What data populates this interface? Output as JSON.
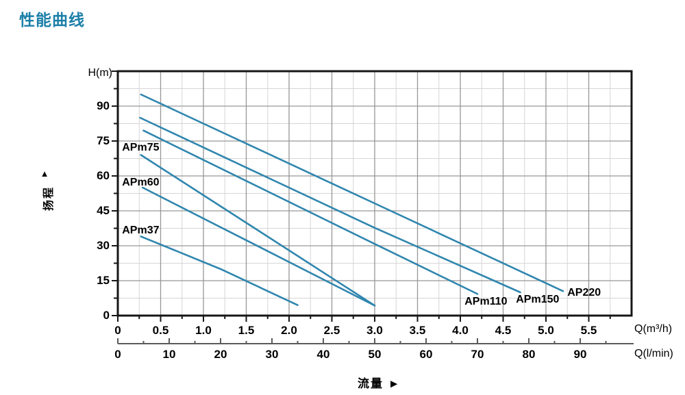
{
  "page_title": "性能曲线",
  "colors": {
    "title": "#1c7fa8",
    "curve": "#2f86ae",
    "grid_minor": "#d6d6d6",
    "grid_major": "#969696",
    "border": "#161616",
    "secondary_axis": "#5a5a5a",
    "text": "#000000"
  },
  "chart_data": {
    "type": "line",
    "title": "性能曲线",
    "grid": "minor+major",
    "legend_position": "inline-labels",
    "y_axis": {
      "unit": "H(m)",
      "title": "扬程",
      "arrow": "▲",
      "range": [
        0,
        105
      ],
      "major_tick": 15,
      "minor_tick": 7.5,
      "tick_labels": [
        "0",
        "15",
        "30",
        "45",
        "60",
        "75",
        "90"
      ]
    },
    "x_axis_primary": {
      "unit": "Q(m³/h)",
      "range": [
        0,
        6
      ],
      "major_tick": 0.5,
      "minor_tick": 0.25,
      "tick_labels": [
        "0",
        "0.5",
        "1.0",
        "1.5",
        "2.0",
        "2.5",
        "3.0",
        "3.5",
        "4.0",
        "4.5",
        "5.0",
        "5.5"
      ]
    },
    "x_axis_secondary": {
      "unit": "Q(l/min)",
      "range": [
        0,
        100
      ],
      "major_tick": 10,
      "minor_tick": 5,
      "tick_labels": [
        "0",
        "10",
        "20",
        "30",
        "40",
        "50",
        "60",
        "70",
        "80",
        "90"
      ]
    },
    "x_axis_title": "流量",
    "x_axis_arrow": "►",
    "series": [
      {
        "name": "AP220",
        "points": [
          [
            0.27,
            95
          ],
          [
            3.0,
            48.2
          ],
          [
            5.2,
            10.5
          ]
        ],
        "label_pos": [
          5.25,
          9.8
        ]
      },
      {
        "name": "APm150",
        "points": [
          [
            0.26,
            85
          ],
          [
            3.0,
            37.7
          ],
          [
            4.7,
            10.0
          ]
        ],
        "label_pos": [
          4.65,
          6.9
        ]
      },
      {
        "name": "APm110",
        "points": [
          [
            0.3,
            79.5
          ],
          [
            3.0,
            30.8
          ],
          [
            4.2,
            9.3
          ]
        ],
        "label_pos": [
          4.05,
          5.8
        ]
      },
      {
        "name": "APm75",
        "points": [
          [
            0.27,
            69
          ],
          [
            1.6,
            37.5
          ],
          [
            3.0,
            4.3
          ]
        ],
        "label_pos": [
          0.05,
          72.0
        ]
      },
      {
        "name": "APm60",
        "points": [
          [
            0.29,
            55
          ],
          [
            1.6,
            30.5
          ],
          [
            3.0,
            4.3
          ]
        ],
        "label_pos": [
          0.05,
          57.0
        ]
      },
      {
        "name": "APm37",
        "points": [
          [
            0.27,
            34
          ],
          [
            1.2,
            20.0
          ],
          [
            2.1,
            4.5
          ]
        ],
        "label_pos": [
          0.05,
          36.5
        ]
      }
    ]
  }
}
